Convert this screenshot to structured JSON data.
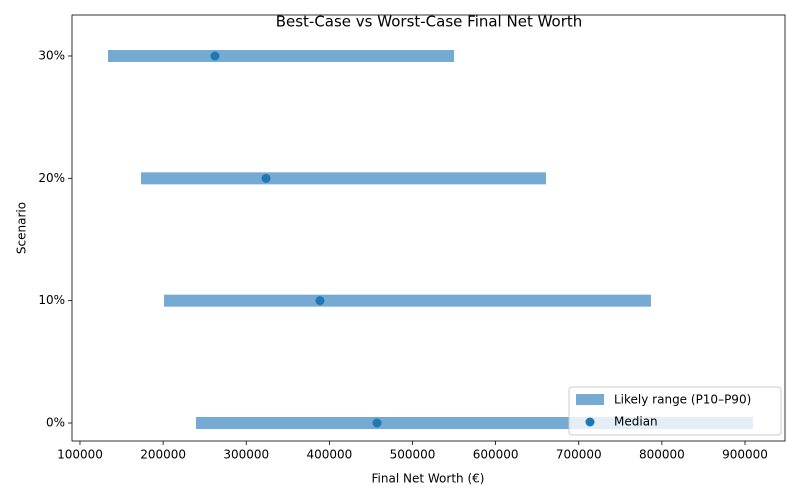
{
  "chart_data": {
    "type": "range",
    "title": "Best-Case vs Worst-Case Final Net Worth",
    "x_label": "Final Net Worth (€)",
    "y_label": "Scenario",
    "categories": [
      "0%",
      "10%",
      "20%",
      "30%"
    ],
    "series": [
      {
        "name": "Likely range (P10–P90)",
        "color": "#75aad3",
        "low": [
          239600,
          201100,
          173400,
          133700
        ],
        "high": [
          909600,
          786900,
          660600,
          550000
        ]
      },
      {
        "name": "Median",
        "color": "#1f77b4",
        "values": [
          457300,
          388700,
          323800,
          262400
        ]
      }
    ],
    "xlim": [
      90400,
      948100
    ],
    "xticks": [
      100000,
      200000,
      300000,
      400000,
      500000,
      600000,
      700000,
      800000,
      900000
    ],
    "legend": "lower right"
  }
}
